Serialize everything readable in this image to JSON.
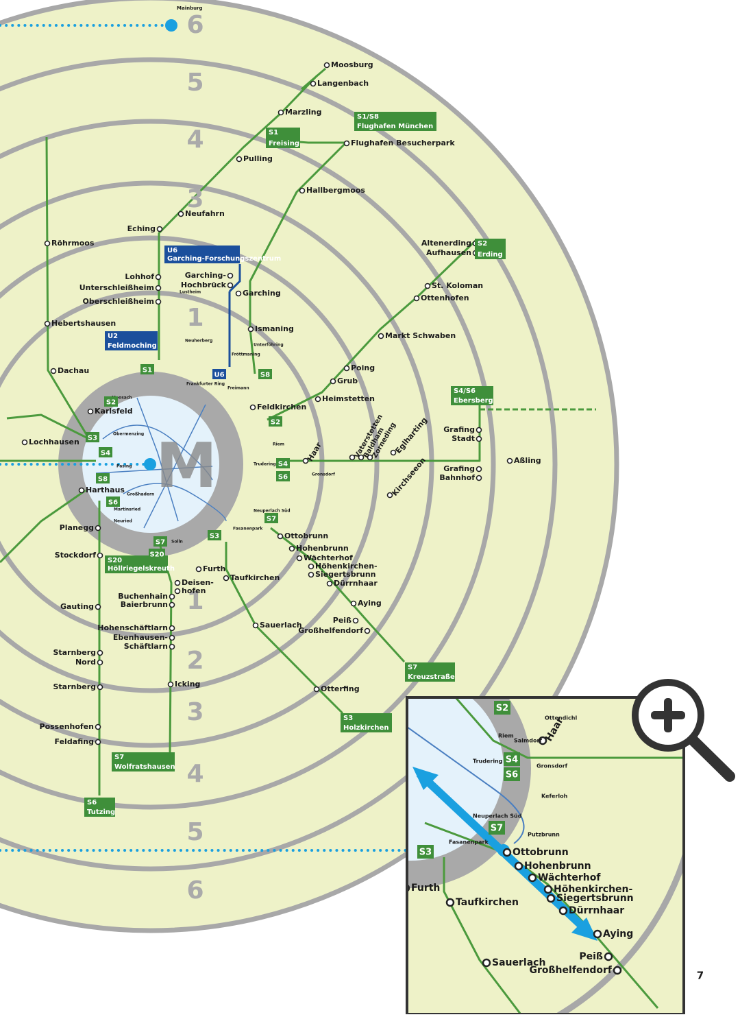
{
  "zones": [
    "6",
    "5",
    "4",
    "3",
    "1",
    "1",
    "2",
    "3",
    "4",
    "5",
    "6"
  ],
  "center_logo": "M",
  "stations": [
    "Mainburg",
    "Moosburg",
    "Langenbach",
    "Marzling",
    "Pulling",
    "Flughafen Besucherpark",
    "Hallbergmoos",
    "Neufahrn",
    "Eching",
    "Garching-",
    "Hochbrück",
    "Garching",
    "Ismaning",
    "Lohhof",
    "Unterschleißheim",
    "Oberschleißheim",
    "Röhrmoos",
    "Hebertshausen",
    "Dachau",
    "Karlsfeld",
    "Lochhausen",
    "Harthaus",
    "Planegg",
    "Stockdorf",
    "Gauting",
    "Starnberg",
    "Nord",
    "Starnberg",
    "Possenhofen",
    "Feldafing",
    "Feldkirchen",
    "Heimstetten",
    "Grub",
    "Poing",
    "Markt Schwaben",
    "Ottenhofen",
    "St. Koloman",
    "Altenerding",
    "Aufhausen",
    "Haar",
    "Eglharting",
    "Kirchseeon",
    "Grafing",
    "Bahnhof",
    "Grafing",
    "Stadt",
    "Aßling",
    "Ottobrunn",
    "Hohenbrunn",
    "Wächterhof",
    "Höhenkirchen-",
    "Siegertsbrunn",
    "Dürrnhaar",
    "Aying",
    "Peiß",
    "Großhelfendorf",
    "Otterfing",
    "Sauerlach",
    "Furth",
    "Taufkirchen",
    "Deisen-",
    "hofen",
    "Buchenhain",
    "Baierbrunn",
    "Hohenschäftlarn",
    "Ebenhausen-",
    "Schäftlarn",
    "Icking",
    "Vaterstetten",
    "Baldham",
    "Zorneding",
    "Freimann",
    "Fröttmaning",
    "Unterföhring",
    "Riem",
    "Trudering",
    "Neuperlach Süd",
    "Fasanenpark",
    "Solln",
    "Moosach",
    "Obermenzing",
    "Pasing",
    "Großhadern",
    "Martinsried",
    "Neuried",
    "Gronsdorf",
    "Lustheim",
    "Neuherberg",
    "Frankfurter Ring"
  ],
  "badges": [
    {
      "line": "S1",
      "name": "Freising"
    },
    {
      "line": "S1/S8",
      "name": "Flughafen München"
    },
    {
      "line": "S2",
      "name": "Erding"
    },
    {
      "line": "S4/S6",
      "name": "Ebersberg"
    },
    {
      "line": "S7",
      "name": "Kreuzstraße"
    },
    {
      "line": "S3",
      "name": "Holzkirchen"
    },
    {
      "line": "S7",
      "name": "Wolfratshausen"
    },
    {
      "line": "S6",
      "name": "Tutzing"
    },
    {
      "line": "S20",
      "name": "Höllriegelskreuth"
    },
    {
      "line": "U6",
      "name": "Garching-Forschungszentrum"
    },
    {
      "line": "U2",
      "name": "Feldmoching"
    },
    {
      "line": "S1"
    },
    {
      "line": "U6"
    },
    {
      "line": "S8"
    },
    {
      "line": "S2"
    },
    {
      "line": "S4"
    },
    {
      "line": "S6"
    },
    {
      "line": "S7"
    },
    {
      "line": "S3"
    },
    {
      "line": "S7"
    },
    {
      "line": "S20"
    },
    {
      "line": "S8"
    },
    {
      "line": "S6"
    },
    {
      "line": "S3"
    },
    {
      "line": "S4"
    },
    {
      "line": "S2"
    }
  ],
  "inset": {
    "stations": [
      "Ottobrunn",
      "Hohenbrunn",
      "Wächterhof",
      "Höhenkirchen-",
      "Siegertsbrunn",
      "Dürrnhaar",
      "Aying",
      "Peiß",
      "Großhelfendorf",
      "Sauerlach",
      "Furth",
      "Taufkirchen",
      "Haar",
      "Gronsdorf",
      "Riem",
      "Trudering",
      "Fasanenpark",
      "Neuperlach Süd",
      "Ottendichl",
      "Salmdorf",
      "Keferloh",
      "Putzbrunn"
    ],
    "badges": [
      {
        "line": "S2"
      },
      {
        "line": "S4"
      },
      {
        "line": "S6"
      },
      {
        "line": "S7"
      },
      {
        "line": "S3"
      }
    ]
  },
  "page_number": "7"
}
